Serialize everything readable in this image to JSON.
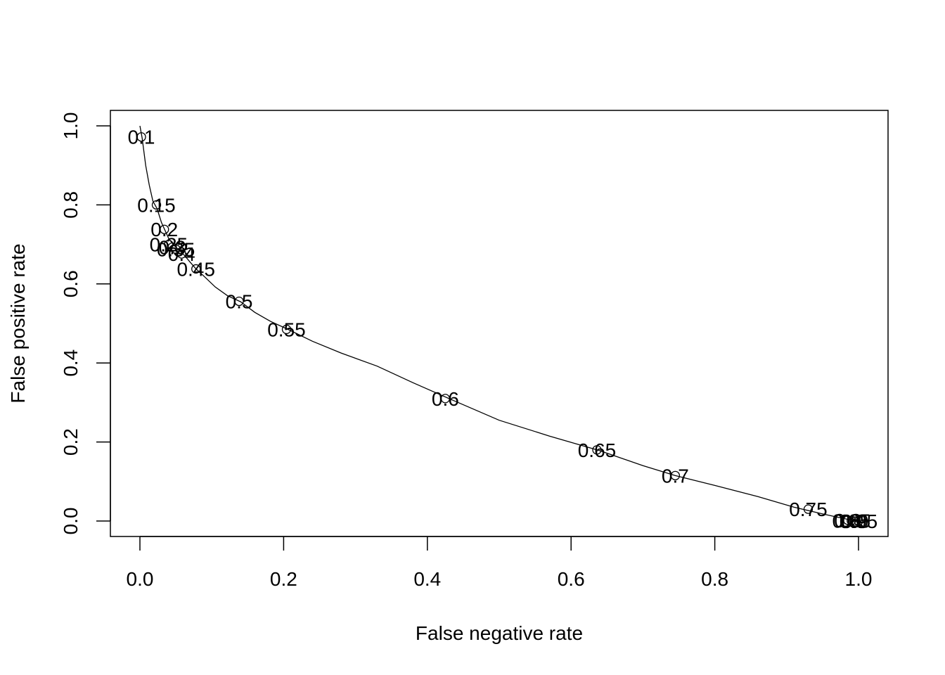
{
  "chart_data": {
    "type": "line",
    "title": "",
    "xlabel": "False negative rate",
    "ylabel": "False positive rate",
    "xlim": [
      -0.04,
      1.04
    ],
    "ylim": [
      -0.04,
      1.04
    ],
    "x_ticks": [
      0.0,
      0.2,
      0.4,
      0.6,
      0.8,
      1.0
    ],
    "x_tick_labels": [
      "0.0",
      "0.2",
      "0.4",
      "0.6",
      "0.8",
      "1.0"
    ],
    "y_ticks": [
      0.0,
      0.2,
      0.4,
      0.6,
      0.8,
      1.0
    ],
    "y_tick_labels": [
      "0.0",
      "0.2",
      "0.4",
      "0.6",
      "0.8",
      "1.0"
    ],
    "grid": false,
    "curve": {
      "x": [
        0.0,
        0.003,
        0.008,
        0.013,
        0.018,
        0.024,
        0.03,
        0.035,
        0.04,
        0.045,
        0.05,
        0.056,
        0.062,
        0.07,
        0.078,
        0.09,
        0.105,
        0.122,
        0.14,
        0.16,
        0.182,
        0.206,
        0.24,
        0.28,
        0.33,
        0.38,
        0.43,
        0.5,
        0.57,
        0.64,
        0.7,
        0.745,
        0.8,
        0.86,
        0.91,
        0.95,
        0.98,
        1.0
      ],
      "y": [
        1.0,
        0.97,
        0.9,
        0.85,
        0.81,
        0.79,
        0.755,
        0.735,
        0.715,
        0.703,
        0.693,
        0.683,
        0.672,
        0.655,
        0.638,
        0.618,
        0.592,
        0.57,
        0.555,
        0.528,
        0.505,
        0.485,
        0.455,
        0.425,
        0.392,
        0.35,
        0.31,
        0.255,
        0.215,
        0.178,
        0.14,
        0.115,
        0.09,
        0.062,
        0.035,
        0.018,
        0.006,
        0.0
      ]
    },
    "points": [
      {
        "label": "0.1",
        "x": 0.002,
        "y": 0.972
      },
      {
        "label": "0.15",
        "x": 0.023,
        "y": 0.8
      },
      {
        "label": "0.2",
        "x": 0.034,
        "y": 0.738
      },
      {
        "label": "0.25",
        "x": 0.04,
        "y": 0.7
      },
      {
        "label": "0.3",
        "x": 0.045,
        "y": 0.693
      },
      {
        "label": "0.35",
        "x": 0.05,
        "y": 0.688
      },
      {
        "label": "0.4",
        "x": 0.058,
        "y": 0.676
      },
      {
        "label": "0.45",
        "x": 0.078,
        "y": 0.638
      },
      {
        "label": "0.5",
        "x": 0.138,
        "y": 0.556
      },
      {
        "label": "0.55",
        "x": 0.204,
        "y": 0.485
      },
      {
        "label": "0.6",
        "x": 0.425,
        "y": 0.31
      },
      {
        "label": "0.65",
        "x": 0.636,
        "y": 0.18
      },
      {
        "label": "0.7",
        "x": 0.745,
        "y": 0.115
      },
      {
        "label": "0.75",
        "x": 0.93,
        "y": 0.03
      },
      {
        "label": "0.8",
        "x": 0.985,
        "y": 0.002
      },
      {
        "label": "0.85",
        "x": 0.99,
        "y": 0.001
      },
      {
        "label": "0.9",
        "x": 0.995,
        "y": 0.0
      },
      {
        "label": "0.95",
        "x": 1.0,
        "y": 0.0
      }
    ]
  }
}
